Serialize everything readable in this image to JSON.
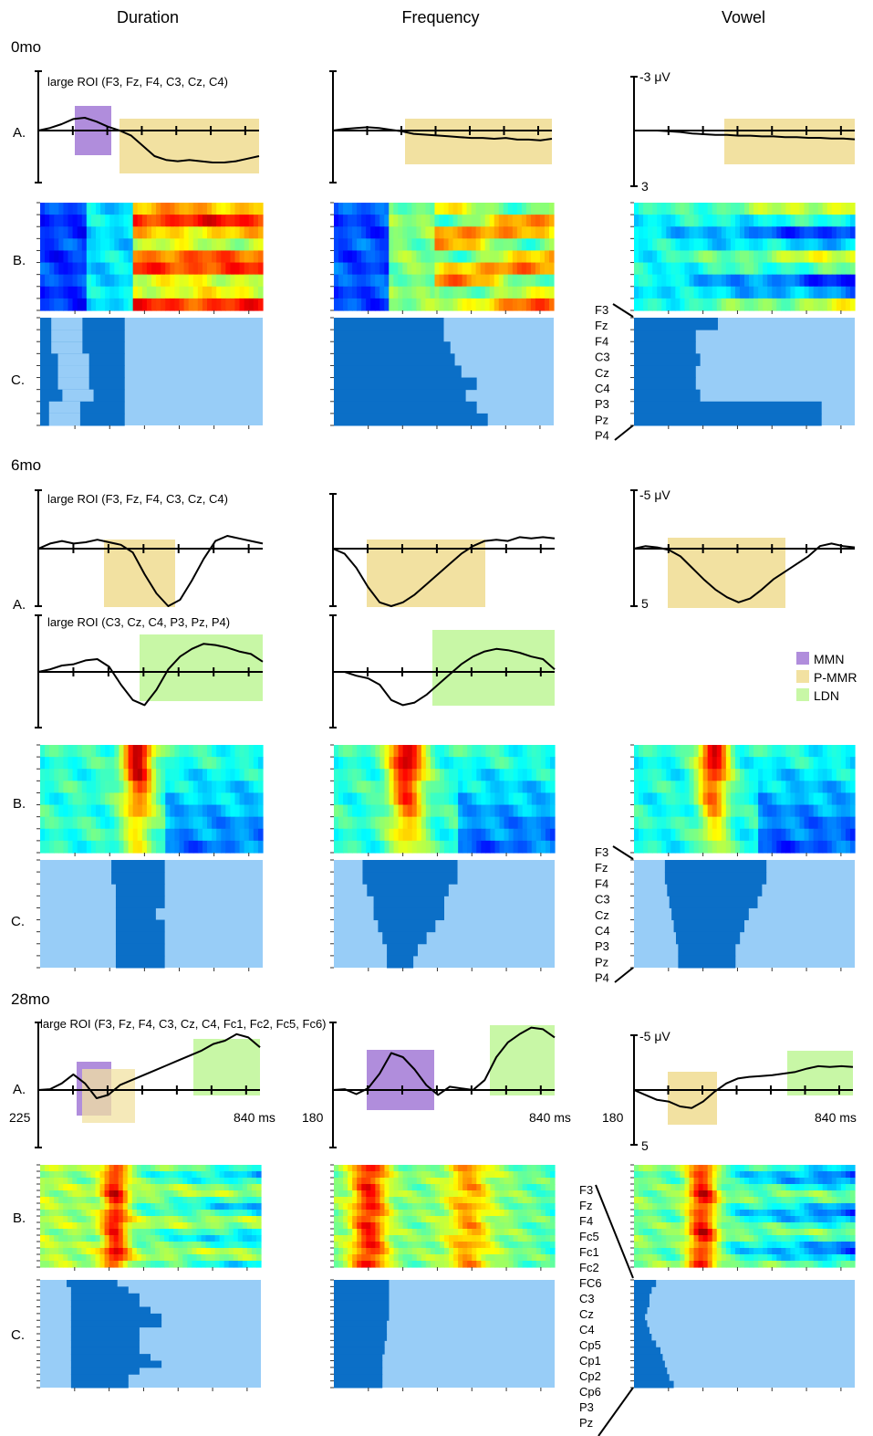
{
  "columns": [
    "Duration",
    "Frequency",
    "Vowel"
  ],
  "row_labels": {
    "a": "A.",
    "b": "B.",
    "c": "C."
  },
  "colors": {
    "mmn": "#b08ddc",
    "pmmr": "#f2e1a1",
    "ldn": "#c8f7a6",
    "sig_dark": "#0b6fc7",
    "sig_light": "#98cdf7"
  },
  "legend": [
    {
      "label": "MMN",
      "color": "#b08ddc"
    },
    {
      "label": "P-MMR",
      "color": "#f2e1a1"
    },
    {
      "label": "LDN",
      "color": "#c8f7a6"
    }
  ],
  "electrodes_9": [
    "F3",
    "Fz",
    "F4",
    "C3",
    "Cz",
    "C4",
    "P3",
    "Pz",
    "P4"
  ],
  "electrodes_16": [
    "F3",
    "Fz",
    "F4",
    "Fc5",
    "Fc1",
    "Fc2",
    "FC6",
    "C3",
    "Cz",
    "C4",
    "Cp5",
    "Cp1",
    "Cp2",
    "Cp6",
    "P3",
    "Pz"
  ],
  "panels": {
    "m0": {
      "age": "0mo",
      "roi": "large ROI (F3, Fz, F4, C3, Cz, C4)",
      "scale_top": "-3 μV",
      "scale_bottom": "3"
    },
    "m6": {
      "age": "6mo",
      "roi1": "large ROI (F3, Fz, F4, C3, Cz, C4)",
      "roi2": "large ROI (C3, Cz, C4, P3, Pz, P4)",
      "scale_top": "-5 μV",
      "scale_bottom": "5"
    },
    "m28": {
      "age": "28mo",
      "roi": "large ROI (F3, Fz, F4, C3, Cz, C4, Fc1, Fc2, Fc5, Fc6)",
      "scale_top": "-5 μV",
      "scale_bottom": "5",
      "x_start_duration": "225",
      "x_start_frequency": "180",
      "x_start_vowel": "180",
      "x_end": "840 ms"
    }
  },
  "chart_data": {
    "type": "line",
    "title": "",
    "xlabel": "",
    "ylabel": "",
    "series": [
      {
        "age": "0mo",
        "condition": "Duration",
        "roi": "large ROI (F3, Fz, F4, C3, Cz, C4)",
        "windows": [
          {
            "component": "MMN"
          },
          {
            "component": "P-MMR"
          }
        ],
        "y": [
          0,
          0.2,
          0.5,
          0.9,
          1.0,
          0.7,
          0.3,
          0,
          -0.4,
          -1.2,
          -2.0,
          -2.3,
          -2.4,
          -2.3,
          -2.4,
          -2.5,
          -2.5,
          -2.4,
          -2.2,
          -2.0
        ]
      },
      {
        "age": "0mo",
        "condition": "Frequency",
        "windows": [
          {
            "component": "P-MMR"
          }
        ],
        "y": [
          0,
          0.2,
          0.3,
          0.4,
          0.3,
          0.1,
          -0.1,
          -0.4,
          -0.5,
          -0.6,
          -0.7,
          -0.8,
          -0.9,
          -0.9,
          -1.0,
          -0.9,
          -1.1,
          -1.1,
          -1.2,
          -1.0
        ]
      },
      {
        "age": "0mo",
        "condition": "Vowel",
        "scale": "-3 μV / 3",
        "windows": [
          {
            "component": "P-MMR"
          }
        ],
        "y": [
          0,
          0.0,
          0.0,
          -0.1,
          -0.2,
          -0.4,
          -0.5,
          -0.6,
          -0.6,
          -0.7,
          -0.7,
          -0.8,
          -0.8,
          -0.9,
          -0.9,
          -1.0,
          -1.0,
          -1.1,
          -1.1,
          -1.2
        ]
      },
      {
        "age": "6mo",
        "condition": "Duration",
        "roi": "large ROI (F3, Fz, F4, C3, Cz, C4)",
        "windows": [
          {
            "component": "P-MMR"
          }
        ],
        "y": [
          0,
          0.4,
          0.6,
          0.4,
          0.5,
          0.7,
          0.5,
          0.3,
          -0.3,
          -2.0,
          -3.5,
          -4.5,
          -4.0,
          -2.5,
          -0.8,
          0.6,
          1.0,
          0.8,
          0.6,
          0.4
        ]
      },
      {
        "age": "6mo",
        "condition": "Frequency",
        "roi": "large ROI (F3, Fz, F4, C3, Cz, C4)",
        "windows": [
          {
            "component": "P-MMR"
          }
        ],
        "y": [
          0,
          -0.4,
          -1.5,
          -3.0,
          -4.2,
          -4.5,
          -4.2,
          -3.6,
          -2.8,
          -2.0,
          -1.2,
          -0.4,
          0.2,
          0.6,
          0.7,
          0.6,
          0.9,
          0.8,
          0.9,
          0.8
        ]
      },
      {
        "age": "6mo",
        "condition": "Vowel",
        "scale": "-5 μV / 5",
        "windows": [
          {
            "component": "P-MMR"
          }
        ],
        "y": [
          0,
          0.2,
          0.1,
          -0.1,
          -0.6,
          -1.5,
          -2.4,
          -3.2,
          -3.8,
          -4.2,
          -3.9,
          -3.2,
          -2.4,
          -1.8,
          -1.2,
          -0.6,
          0.2,
          0.4,
          0.2,
          0.1
        ]
      },
      {
        "age": "6mo",
        "condition": "Duration",
        "roi": "large ROI (C3, Cz, C4, P3, Pz, P4)",
        "windows": [
          {
            "component": "LDN"
          }
        ],
        "y": [
          0,
          0.2,
          0.5,
          0.6,
          0.9,
          1.0,
          0.4,
          -1.0,
          -2.2,
          -2.6,
          -1.4,
          0.2,
          1.2,
          1.8,
          2.2,
          2.1,
          1.9,
          1.6,
          1.4,
          0.8
        ]
      },
      {
        "age": "6mo",
        "condition": "Frequency",
        "roi": "large ROI (C3, Cz, C4, P3, Pz, P4)",
        "windows": [
          {
            "component": "LDN"
          }
        ],
        "y": [
          0,
          0.0,
          -0.3,
          -0.5,
          -1.0,
          -2.2,
          -2.6,
          -2.4,
          -1.8,
          -1.0,
          -0.2,
          0.6,
          1.2,
          1.6,
          1.8,
          1.7,
          1.5,
          1.2,
          1.0,
          0.2
        ]
      },
      {
        "age": "28mo",
        "condition": "Duration",
        "roi": "large ROI (F3, Fz, F4, C3, Cz, C4, Fc1, Fc2, Fc5, Fc6)",
        "x_range": [
          "225",
          "840 ms"
        ],
        "windows": [
          {
            "component": "MMN"
          },
          {
            "component": "P-MMR"
          },
          {
            "component": "LDN"
          }
        ],
        "y": [
          0,
          0.1,
          0.8,
          1.9,
          0.8,
          -1.0,
          -0.6,
          0.6,
          1.2,
          1.8,
          2.4,
          3.0,
          3.6,
          4.2,
          4.8,
          5.6,
          6.0,
          6.8,
          6.4,
          5.2
        ]
      },
      {
        "age": "28mo",
        "condition": "Frequency",
        "x_range": [
          "180",
          "840 ms"
        ],
        "windows": [
          {
            "component": "MMN"
          },
          {
            "component": "LDN"
          }
        ],
        "y": [
          0,
          0.1,
          -0.5,
          0.2,
          2.0,
          4.5,
          4.0,
          2.5,
          0.6,
          -0.6,
          0.4,
          0.2,
          0.0,
          1.2,
          4.0,
          5.8,
          6.8,
          7.6,
          7.4,
          6.4
        ]
      },
      {
        "age": "28mo",
        "condition": "Vowel",
        "scale": "-5 μV / 5",
        "x_range": [
          "180",
          "840 ms"
        ],
        "windows": [
          {
            "component": "P-MMR"
          },
          {
            "component": "LDN"
          }
        ],
        "y": [
          0,
          -0.6,
          -1.2,
          -1.4,
          -2.0,
          -2.2,
          -1.4,
          -0.2,
          0.8,
          1.4,
          1.6,
          1.7,
          1.8,
          2.0,
          2.2,
          2.6,
          2.9,
          2.8,
          2.9,
          2.8
        ]
      }
    ]
  }
}
